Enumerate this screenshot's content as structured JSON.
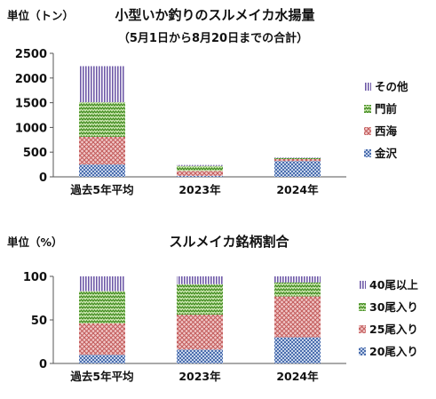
{
  "chart_data": [
    {
      "type": "bar",
      "stacked": true,
      "title": "小型いか釣りのスルメイカ水揚量",
      "subtitle": "（5月1日から8月20日までの合計）",
      "ylabel": "単位（トン）",
      "categories": [
        "過去5年平均",
        "2023年",
        "2024年"
      ],
      "ylim": [
        0,
        2500
      ],
      "yticks": [
        0,
        500,
        1000,
        1500,
        2000,
        2500
      ],
      "legend_position": "right",
      "series": [
        {
          "name": "金沢",
          "values": [
            250,
            20,
            320
          ],
          "color": "#6f8fc4",
          "pattern": "dots"
        },
        {
          "name": "西海",
          "values": [
            560,
            100,
            40
          ],
          "color": "#d98c8c",
          "pattern": "cross"
        },
        {
          "name": "門前",
          "values": [
            700,
            100,
            20
          ],
          "color": "#76b041",
          "pattern": "zigzag"
        },
        {
          "name": "その他",
          "values": [
            730,
            20,
            10
          ],
          "color": "#8a7ab8",
          "pattern": "vlines"
        }
      ]
    },
    {
      "type": "bar",
      "stacked": true,
      "title": "スルメイカ銘柄割合",
      "ylabel": "単位（%）",
      "categories": [
        "過去5年平均",
        "2023年",
        "2024年"
      ],
      "ylim": [
        0,
        100
      ],
      "yticks": [
        0,
        50,
        100
      ],
      "legend_position": "right",
      "series": [
        {
          "name": "20尾入り",
          "values": [
            10,
            16,
            30
          ],
          "color": "#6f8fc4",
          "pattern": "dots"
        },
        {
          "name": "25尾入り",
          "values": [
            36,
            40,
            47
          ],
          "color": "#d98c8c",
          "pattern": "cross"
        },
        {
          "name": "30尾入り",
          "values": [
            37,
            35,
            16
          ],
          "color": "#76b041",
          "pattern": "zigzag"
        },
        {
          "name": "40尾以上",
          "values": [
            17,
            9,
            7
          ],
          "color": "#8a7ab8",
          "pattern": "vlines"
        }
      ]
    }
  ]
}
